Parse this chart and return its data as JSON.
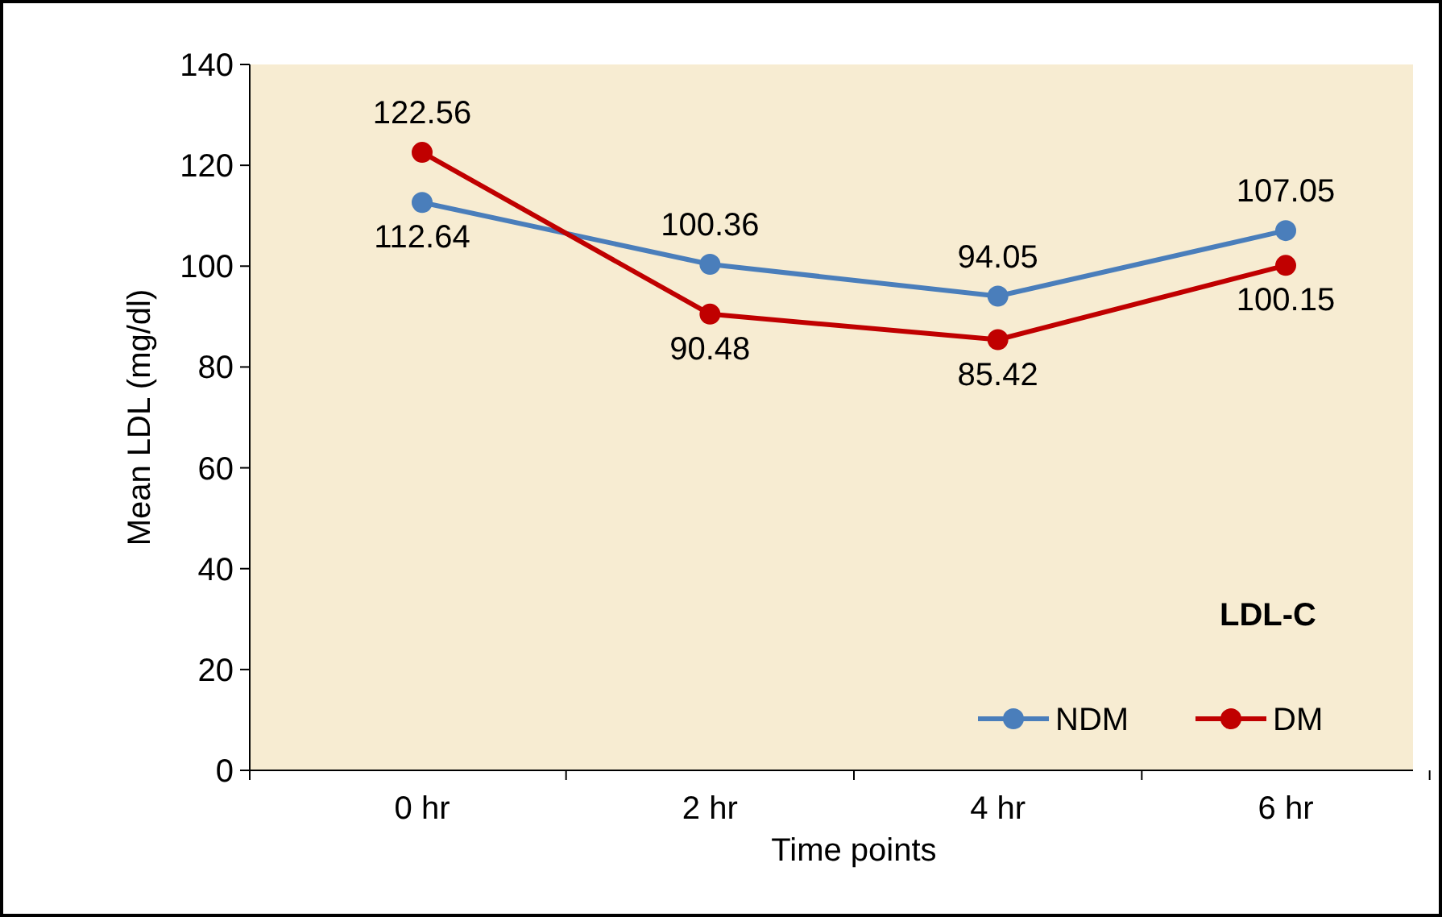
{
  "chart_data": {
    "type": "line",
    "ylabel": "Mean LDL (mg/dl)",
    "xlabel": "Time points",
    "categories": [
      "0 hr",
      "2 hr",
      "4 hr",
      "6 hr"
    ],
    "series": [
      {
        "name": "NDM",
        "color": "#4a7ebb",
        "values": [
          112.64,
          100.36,
          94.05,
          107.05
        ]
      },
      {
        "name": "DM",
        "color": "#c00000",
        "values": [
          122.56,
          90.48,
          85.42,
          100.15
        ]
      }
    ],
    "ylim": [
      0,
      140
    ],
    "yticks": [
      0,
      20,
      40,
      60,
      80,
      100,
      120,
      140
    ],
    "grid": false,
    "legend": "bottom right",
    "marker": "circle",
    "line_style": "solid",
    "data_labels": true,
    "annotations": [
      "LDL-C"
    ]
  }
}
